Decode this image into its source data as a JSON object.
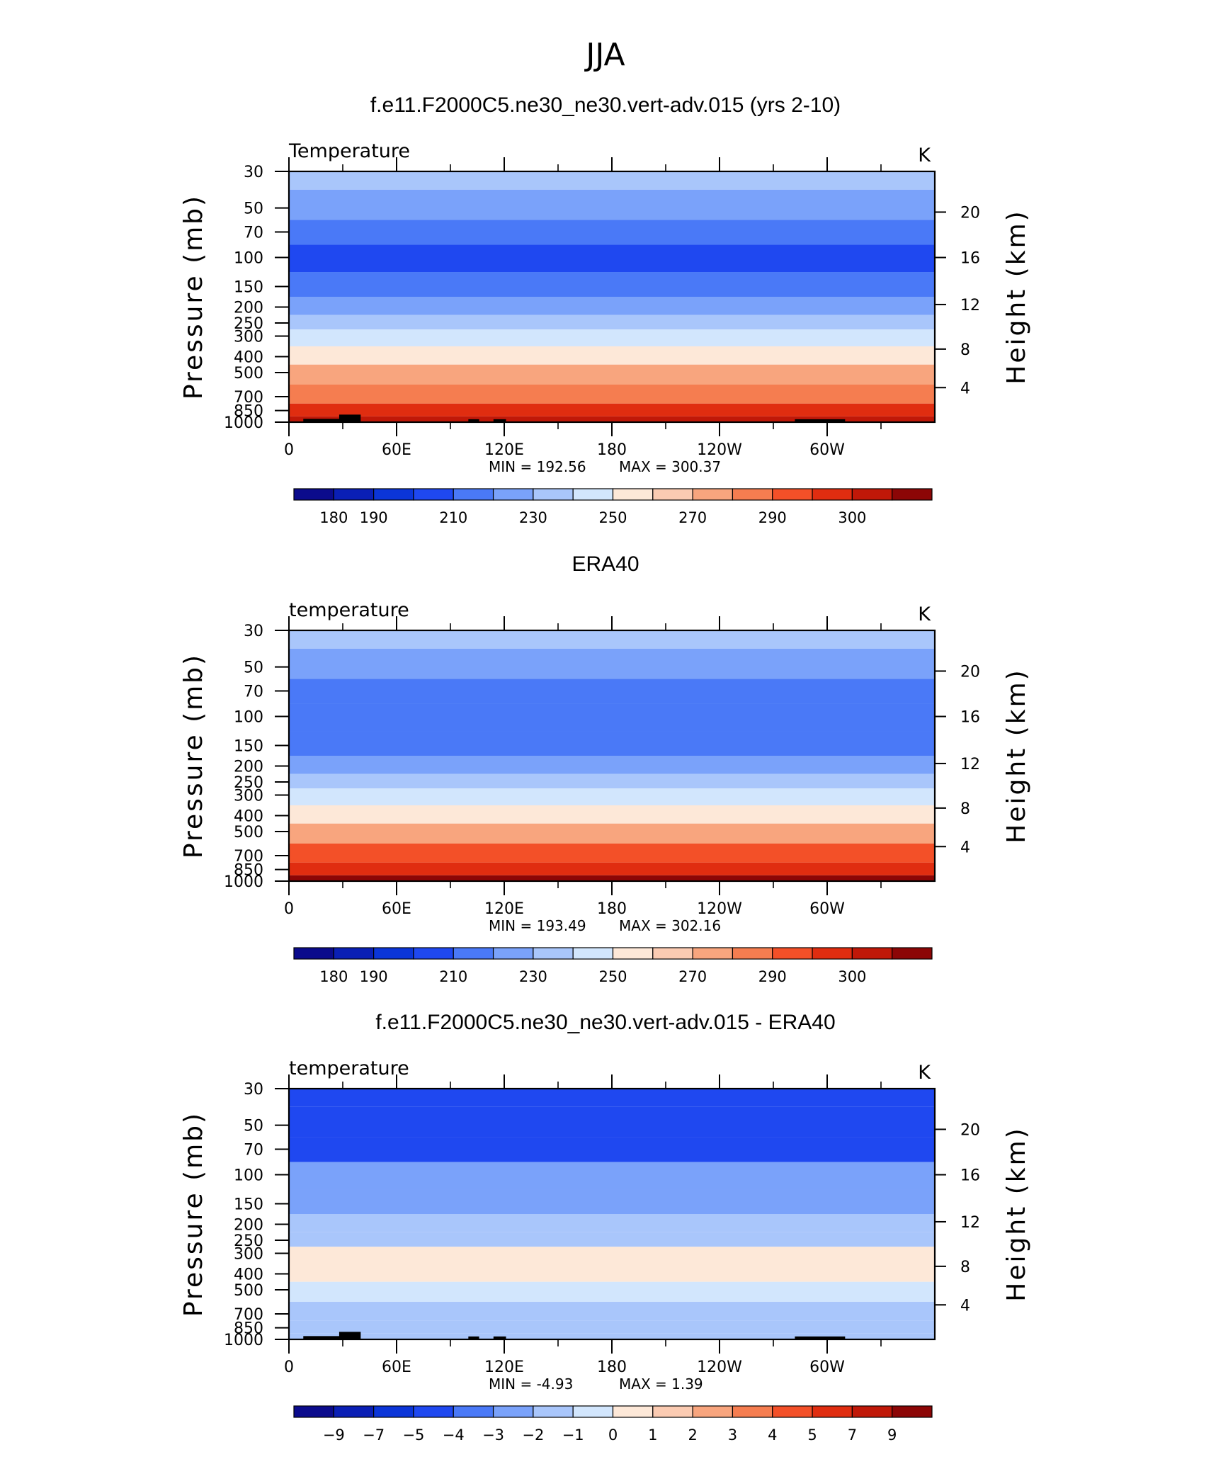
{
  "figure_title": "JJA",
  "chart_data": [
    {
      "type": "heatmap",
      "title": "f.e11.F2000C5.ne30_ne30.vert-adv.015 (yrs 2-10)",
      "left_label": "Temperature",
      "units": "K",
      "ylabel": "Pressure (mb)",
      "ylabel2": "Height (km)",
      "x_ticks": [
        "0",
        "60E",
        "120E",
        "180",
        "120W",
        "60W"
      ],
      "y_ticks": [
        "30",
        "50",
        "70",
        "100",
        "150",
        "200",
        "250",
        "300",
        "400",
        "500",
        "700",
        "850",
        "1000"
      ],
      "y2_ticks": [
        "20",
        "16",
        "12",
        "8",
        "4"
      ],
      "xlim": [
        0,
        360
      ],
      "ylim_mb": [
        1000,
        30
      ],
      "y_scale": "log",
      "min_text": "MIN = 192.56",
      "max_text": "MAX = 300.37",
      "min": 192.56,
      "max": 300.37,
      "pressure_levels": [
        30,
        50,
        70,
        100,
        150,
        200,
        250,
        300,
        400,
        500,
        700,
        850,
        1000
      ],
      "zonal_profile": [
        225,
        215,
        205,
        198,
        205,
        215,
        222,
        232,
        245,
        260,
        278,
        290,
        298
      ],
      "colorbar_ticks": [
        "180",
        "190",
        "210",
        "230",
        "250",
        "270",
        "290",
        "300"
      ],
      "colorbar_levels": [
        175,
        180,
        185,
        190,
        200,
        210,
        220,
        230,
        240,
        250,
        260,
        270,
        280,
        290,
        295,
        300,
        305
      ],
      "topography": true
    },
    {
      "type": "heatmap",
      "title": "ERA40",
      "left_label": "temperature",
      "units": "K",
      "ylabel": "Pressure (mb)",
      "ylabel2": "Height (km)",
      "x_ticks": [
        "0",
        "60E",
        "120E",
        "180",
        "120W",
        "60W"
      ],
      "y_ticks": [
        "30",
        "50",
        "70",
        "100",
        "150",
        "200",
        "250",
        "300",
        "400",
        "500",
        "700",
        "850",
        "1000"
      ],
      "y2_ticks": [
        "20",
        "16",
        "12",
        "8",
        "4"
      ],
      "xlim": [
        0,
        360
      ],
      "ylim_mb": [
        1000,
        30
      ],
      "y_scale": "log",
      "min_text": "MIN = 193.49",
      "max_text": "MAX = 302.16",
      "min": 193.49,
      "max": 302.16,
      "pressure_levels": [
        30,
        50,
        70,
        100,
        150,
        200,
        250,
        300,
        400,
        500,
        700,
        850,
        1000
      ],
      "zonal_profile": [
        222,
        212,
        205,
        200,
        208,
        218,
        225,
        235,
        248,
        262,
        280,
        292,
        300
      ],
      "colorbar_ticks": [
        "180",
        "190",
        "210",
        "230",
        "250",
        "270",
        "290",
        "300"
      ],
      "colorbar_levels": [
        175,
        180,
        185,
        190,
        200,
        210,
        220,
        230,
        240,
        250,
        260,
        270,
        280,
        290,
        295,
        300,
        305
      ],
      "topography": false
    },
    {
      "type": "heatmap",
      "title": "f.e11.F2000C5.ne30_ne30.vert-adv.015 - ERA40",
      "left_label": "temperature",
      "units": "K",
      "ylabel": "Pressure (mb)",
      "ylabel2": "Height (km)",
      "x_ticks": [
        "0",
        "60E",
        "120E",
        "180",
        "120W",
        "60W"
      ],
      "y_ticks": [
        "30",
        "50",
        "70",
        "100",
        "150",
        "200",
        "250",
        "300",
        "400",
        "500",
        "700",
        "850",
        "1000"
      ],
      "y2_ticks": [
        "20",
        "16",
        "12",
        "8",
        "4"
      ],
      "xlim": [
        0,
        360
      ],
      "ylim_mb": [
        1000,
        30
      ],
      "y_scale": "log",
      "min_text": "MIN = -4.93",
      "max_text": "MAX = 1.39",
      "min": -4.93,
      "max": 1.39,
      "pressure_levels": [
        30,
        50,
        70,
        100,
        150,
        200,
        250,
        300,
        400,
        500,
        700,
        850,
        1000
      ],
      "zonal_profile": [
        -4.3,
        -4.3,
        -4.6,
        -2.5,
        -2.2,
        -1.6,
        -1.4,
        0.3,
        0.3,
        -0.6,
        -1.2,
        -1.6,
        -1.5
      ],
      "colorbar_ticks": [
        "−9",
        "−7",
        "−5",
        "−4",
        "−3",
        "−2",
        "−1",
        "0",
        "1",
        "2",
        "3",
        "4",
        "5",
        "7",
        "9"
      ],
      "colorbar_levels": [
        -11,
        -9,
        -7,
        -5,
        -4,
        -3,
        -2,
        -1,
        0,
        1,
        2,
        3,
        4,
        5,
        7,
        9,
        11
      ],
      "topography": true
    }
  ],
  "colors": {
    "colormap": [
      "#0b0b8c",
      "#0a1fb5",
      "#0b35d8",
      "#1f48f0",
      "#4a79f7",
      "#7aa2fa",
      "#a9c6fb",
      "#d2e6fd",
      "#fde8d8",
      "#fbcbb2",
      "#f8a57e",
      "#f57d50",
      "#f35028",
      "#e02d10",
      "#c01808",
      "#8c0606"
    ],
    "topography": "#000000"
  }
}
